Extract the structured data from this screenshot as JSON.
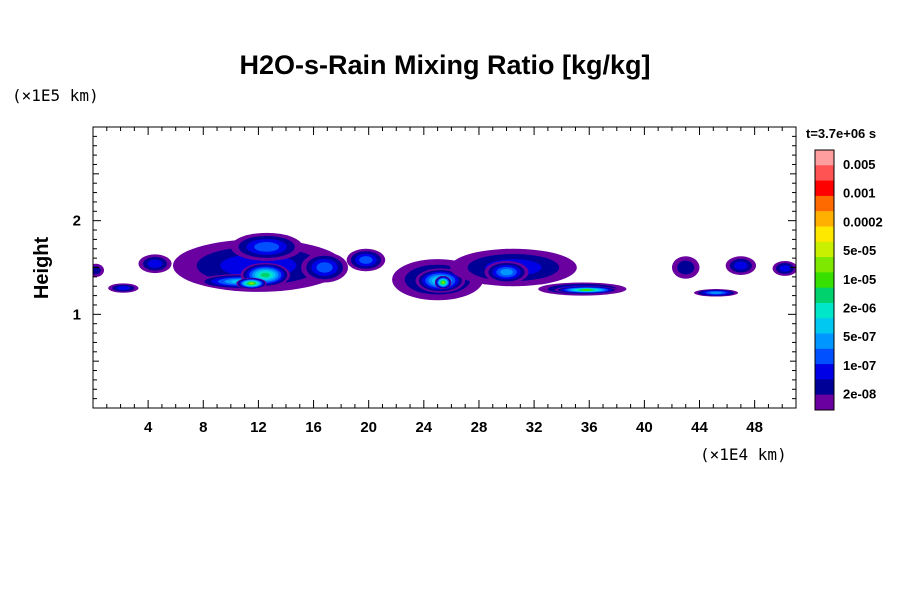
{
  "chart_data": {
    "type": "heatmap",
    "title": "H2O-s-Rain Mixing Ratio [kg/kg]",
    "ylabel": "Height",
    "xlabel": "",
    "x_unit": "(×1E4 km)",
    "y_unit": "(×1E5 km)",
    "time_label": "t=3.7e+06 s",
    "xlim": [
      0,
      51
    ],
    "ylim": [
      0,
      3
    ],
    "x_ticks": [
      4,
      8,
      12,
      16,
      20,
      24,
      28,
      32,
      36,
      40,
      44,
      48
    ],
    "y_ticks": [
      1,
      2
    ],
    "x_tick_labels": [
      "4",
      "8",
      "12",
      "16",
      "20",
      "24",
      "28",
      "32",
      "36",
      "40",
      "44",
      "48"
    ],
    "y_tick_labels": [
      "1",
      "2"
    ],
    "colorbar": {
      "labels": [
        "0.005",
        "0.001",
        "0.0002",
        "5e-05",
        "1e-05",
        "2e-06",
        "5e-07",
        "1e-07",
        "2e-08"
      ],
      "colors": [
        "#ff9e9e",
        "#ff5252",
        "#ff0000",
        "#ff6a00",
        "#ffb000",
        "#ffe800",
        "#c8f000",
        "#7ee800",
        "#38e000",
        "#00d26e",
        "#00e6c8",
        "#00c8f0",
        "#0096ff",
        "#0050ff",
        "#0000e6",
        "#000096",
        "#6a00a0"
      ]
    },
    "regions": [
      {
        "x": 0.2,
        "y": 1.47,
        "rx": 0.6,
        "ry": 0.07,
        "level": 1
      },
      {
        "x": 2.2,
        "y": 1.28,
        "rx": 1.1,
        "ry": 0.05,
        "level": 2
      },
      {
        "x": 4.5,
        "y": 1.54,
        "rx": 1.2,
        "ry": 0.1,
        "level": 2
      },
      {
        "x": 12.0,
        "y": 1.52,
        "rx": 6.2,
        "ry": 0.28,
        "level": 2
      },
      {
        "x": 12.6,
        "y": 1.72,
        "rx": 2.6,
        "ry": 0.15,
        "level": 3
      },
      {
        "x": 10.8,
        "y": 1.35,
        "rx": 3.2,
        "ry": 0.08,
        "level": 5
      },
      {
        "x": 12.5,
        "y": 1.42,
        "rx": 1.8,
        "ry": 0.13,
        "level": 7
      },
      {
        "x": 11.5,
        "y": 1.33,
        "rx": 1.1,
        "ry": 0.06,
        "level": 9
      },
      {
        "x": 16.8,
        "y": 1.5,
        "rx": 1.7,
        "ry": 0.16,
        "level": 3
      },
      {
        "x": 19.8,
        "y": 1.58,
        "rx": 1.4,
        "ry": 0.12,
        "level": 3
      },
      {
        "x": 25.0,
        "y": 1.37,
        "rx": 3.3,
        "ry": 0.22,
        "level": 2
      },
      {
        "x": 25.2,
        "y": 1.36,
        "rx": 1.8,
        "ry": 0.13,
        "level": 6
      },
      {
        "x": 25.4,
        "y": 1.34,
        "rx": 0.6,
        "ry": 0.07,
        "level": 9
      },
      {
        "x": 30.5,
        "y": 1.5,
        "rx": 4.6,
        "ry": 0.2,
        "level": 2
      },
      {
        "x": 30.0,
        "y": 1.45,
        "rx": 1.6,
        "ry": 0.12,
        "level": 4
      },
      {
        "x": 35.5,
        "y": 1.27,
        "rx": 3.2,
        "ry": 0.07,
        "level": 3
      },
      {
        "x": 35.8,
        "y": 1.26,
        "rx": 2.3,
        "ry": 0.04,
        "level": 8
      },
      {
        "x": 43.0,
        "y": 1.5,
        "rx": 1.0,
        "ry": 0.12,
        "level": 1
      },
      {
        "x": 45.2,
        "y": 1.23,
        "rx": 1.6,
        "ry": 0.04,
        "level": 4
      },
      {
        "x": 47.0,
        "y": 1.52,
        "rx": 1.1,
        "ry": 0.1,
        "level": 2
      },
      {
        "x": 50.2,
        "y": 1.49,
        "rx": 0.9,
        "ry": 0.08,
        "level": 2
      }
    ]
  }
}
